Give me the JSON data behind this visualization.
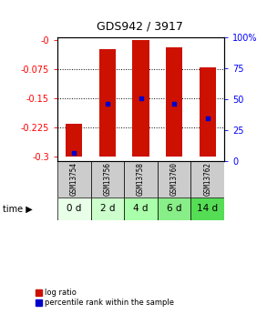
{
  "title": "GDS942 / 3917",
  "samples": [
    "GSM13754",
    "GSM13756",
    "GSM13758",
    "GSM13760",
    "GSM13762"
  ],
  "time_labels": [
    "0 d",
    "2 d",
    "4 d",
    "6 d",
    "14 d"
  ],
  "bar_bottom": -0.3,
  "bar_top": [
    -0.215,
    -0.025,
    -0.002,
    -0.02,
    -0.07
  ],
  "percentile_values": [
    0.03,
    0.45,
    0.5,
    0.45,
    0.33
  ],
  "ylim_left": [
    -0.31,
    0.005
  ],
  "yticks_left": [
    0,
    -0.075,
    -0.15,
    -0.225,
    -0.3
  ],
  "ytick_labels_left": [
    "-0",
    "-0.075",
    "-0.15",
    "-0.225",
    "-0.3"
  ],
  "yticks_right": [
    0,
    25,
    50,
    75,
    100
  ],
  "ytick_labels_right": [
    "0",
    "25",
    "50",
    "75",
    "100%"
  ],
  "bar_color": "#cc1100",
  "percentile_color": "#0000cc",
  "sample_row_color": "#cccccc",
  "time_row_colors": [
    "#e8ffe8",
    "#ccffcc",
    "#aaffaa",
    "#88ee88",
    "#55dd55"
  ],
  "bar_width": 0.5,
  "legend_bar_label": "log ratio",
  "legend_pct_label": "percentile rank within the sample",
  "background_color": "#ffffff",
  "title_fontsize": 9,
  "ytick_fontsize": 7,
  "sample_fontsize": 5.5,
  "time_fontsize": 7.5,
  "legend_fontsize": 6
}
